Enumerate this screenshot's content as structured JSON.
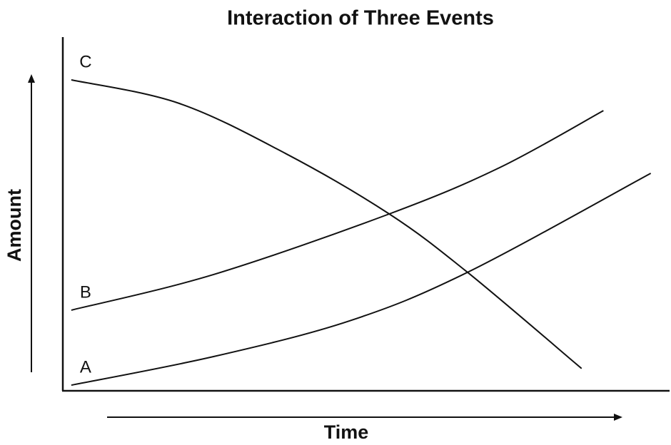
{
  "chart_data": {
    "type": "line",
    "title": "Interaction of Three Events",
    "xlabel": "Time",
    "ylabel": "Amount",
    "xlim": [
      0,
      100
    ],
    "ylim": [
      0,
      100
    ],
    "series": [
      {
        "name": "A",
        "color": "#111111",
        "x": [
          1.4,
          24.9,
          47.3,
          66.7,
          96.9
        ],
        "values": [
          1.6,
          9.7,
          19.8,
          33.5,
          61.5
        ]
      },
      {
        "name": "B",
        "color": "#111111",
        "x": [
          1.4,
          24.9,
          53.8,
          72,
          89.1
        ],
        "values": [
          22.8,
          32.9,
          50,
          63.1,
          79.2
        ]
      },
      {
        "name": "C",
        "color": "#111111",
        "x": [
          1.4,
          19.1,
          36.7,
          53.8,
          66.7,
          85.5
        ],
        "values": [
          87.9,
          81.3,
          67.1,
          50,
          33.5,
          6.3
        ]
      }
    ]
  }
}
